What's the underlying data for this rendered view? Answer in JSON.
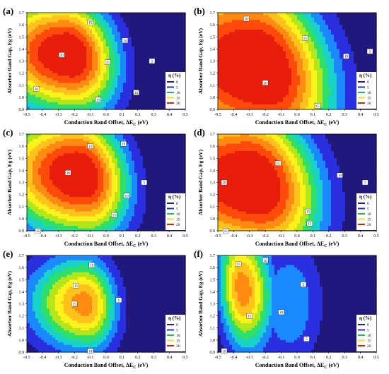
{
  "figure": {
    "x_axis_label": "Conduction Band Offset, ΔE",
    "x_axis_label_sub": "C",
    "x_axis_label_unit": " (eV)",
    "y_axis_label": "Absorber Band Gap, Eg (eV)",
    "x_ticks": [
      "-0.5",
      "-0.4",
      "-0.3",
      "-0.2",
      "-0.1",
      "0.0",
      "0.1",
      "0.2",
      "0.3",
      "0.4",
      "0.5"
    ],
    "y_ticks": [
      "0.9",
      "1.0",
      "1.1",
      "1.2",
      "1.3",
      "1.4",
      "1.5",
      "1.6",
      "1.7"
    ],
    "legend_title": "η (%)",
    "legend_entries": [
      "0",
      "5",
      "10",
      "15",
      "20"
    ],
    "colors": [
      "#20187a",
      "#2a2fe0",
      "#1a88ff",
      "#19d2c8",
      "#2ee06a",
      "#b5e61a",
      "#fff11c",
      "#ffc21c",
      "#ff8a12",
      "#ff4a0c",
      "#e81d0c"
    ]
  },
  "chart_data": [
    {
      "type": "heatmap",
      "panel": "(a)",
      "x": [
        -0.5,
        0.5
      ],
      "y": [
        0.9,
        1.7
      ],
      "optimum": {
        "x": -0.28,
        "y": 1.36,
        "eta": 20
      },
      "contour_labels": [
        {
          "x": -0.1,
          "y": 1.62,
          "t": "15"
        },
        {
          "x": 0.12,
          "y": 1.47,
          "t": "10"
        },
        {
          "x": -0.28,
          "y": 1.35,
          "t": "20"
        },
        {
          "x": 0.29,
          "y": 1.3,
          "t": "5"
        },
        {
          "x": 0.01,
          "y": 1.29,
          "t": "15"
        },
        {
          "x": -0.44,
          "y": 1.07,
          "t": "20"
        },
        {
          "x": -0.05,
          "y": 0.98,
          "t": "15"
        },
        {
          "x": 0.19,
          "y": 1.04,
          "t": "10"
        }
      ]
    },
    {
      "type": "heatmap",
      "panel": "(b)",
      "x": [
        -0.5,
        0.5
      ],
      "y": [
        0.9,
        1.7
      ],
      "optimum": {
        "x": -0.3,
        "y": 1.25,
        "eta": 20
      },
      "contour_labels": [
        {
          "x": -0.32,
          "y": 1.65,
          "t": "20"
        },
        {
          "x": 0.05,
          "y": 1.49,
          "t": "15"
        },
        {
          "x": 0.31,
          "y": 1.34,
          "t": "10"
        },
        {
          "x": 0.46,
          "y": 1.38,
          "t": "5"
        },
        {
          "x": -0.2,
          "y": 1.12,
          "t": "20"
        },
        {
          "x": 0.13,
          "y": 0.93,
          "t": "15"
        }
      ]
    },
    {
      "type": "heatmap",
      "panel": "(c)",
      "x": [
        -0.5,
        0.5
      ],
      "y": [
        0.9,
        1.7
      ],
      "optimum": {
        "x": -0.22,
        "y": 1.38,
        "eta": 20
      },
      "contour_labels": [
        {
          "x": -0.1,
          "y": 1.6,
          "t": "15"
        },
        {
          "x": 0.11,
          "y": 1.62,
          "t": "10"
        },
        {
          "x": -0.24,
          "y": 1.38,
          "t": "20"
        },
        {
          "x": 0.24,
          "y": 1.3,
          "t": "5"
        },
        {
          "x": 0.13,
          "y": 1.19,
          "t": "10"
        },
        {
          "x": 0.05,
          "y": 1.03,
          "t": "15"
        },
        {
          "x": -0.43,
          "y": 0.9,
          "t": "15"
        }
      ]
    },
    {
      "type": "heatmap",
      "panel": "(d)",
      "x": [
        -0.5,
        0.5
      ],
      "y": [
        0.9,
        1.7
      ],
      "optimum": {
        "x": -0.38,
        "y": 1.33,
        "eta": 20
      },
      "contour_labels": [
        {
          "x": -0.12,
          "y": 1.46,
          "t": "15"
        },
        {
          "x": 0.27,
          "y": 1.36,
          "t": "10"
        },
        {
          "x": 0.43,
          "y": 1.3,
          "t": "5"
        },
        {
          "x": -0.46,
          "y": 1.3,
          "t": "20"
        },
        {
          "x": 0.07,
          "y": 1.06,
          "t": "15"
        },
        {
          "x": 0.08,
          "y": 0.96,
          "t": "15"
        },
        {
          "x": -0.45,
          "y": 0.9,
          "t": "15"
        }
      ]
    },
    {
      "type": "heatmap",
      "panel": "(e)",
      "x": [
        -0.5,
        0.5
      ],
      "y": [
        0.9,
        1.7
      ],
      "optimum": {
        "x": -0.15,
        "y": 1.3,
        "eta": 15
      },
      "contour_labels": [
        {
          "x": -0.09,
          "y": 1.62,
          "t": "10"
        },
        {
          "x": -0.19,
          "y": 1.45,
          "t": "15"
        },
        {
          "x": -0.2,
          "y": 1.3,
          "t": "15"
        },
        {
          "x": 0.08,
          "y": 1.33,
          "t": "5"
        },
        {
          "x": -0.1,
          "y": 0.91,
          "t": "10"
        }
      ]
    },
    {
      "type": "heatmap",
      "panel": "(f)",
      "x": [
        -0.5,
        0.5
      ],
      "y": [
        0.9,
        1.7
      ],
      "optimum": {
        "x": -0.38,
        "y": 1.4,
        "eta": 15
      },
      "contour_labels": [
        {
          "x": -0.37,
          "y": 1.63,
          "t": "15"
        },
        {
          "x": -0.2,
          "y": 1.66,
          "t": "10"
        },
        {
          "x": 0.04,
          "y": 1.46,
          "t": "5"
        },
        {
          "x": -0.3,
          "y": 1.2,
          "t": "15"
        },
        {
          "x": -0.1,
          "y": 1.23,
          "t": "10"
        },
        {
          "x": 0.06,
          "y": 1.01,
          "t": "5"
        },
        {
          "x": -0.46,
          "y": 0.91,
          "t": "10"
        }
      ]
    }
  ]
}
